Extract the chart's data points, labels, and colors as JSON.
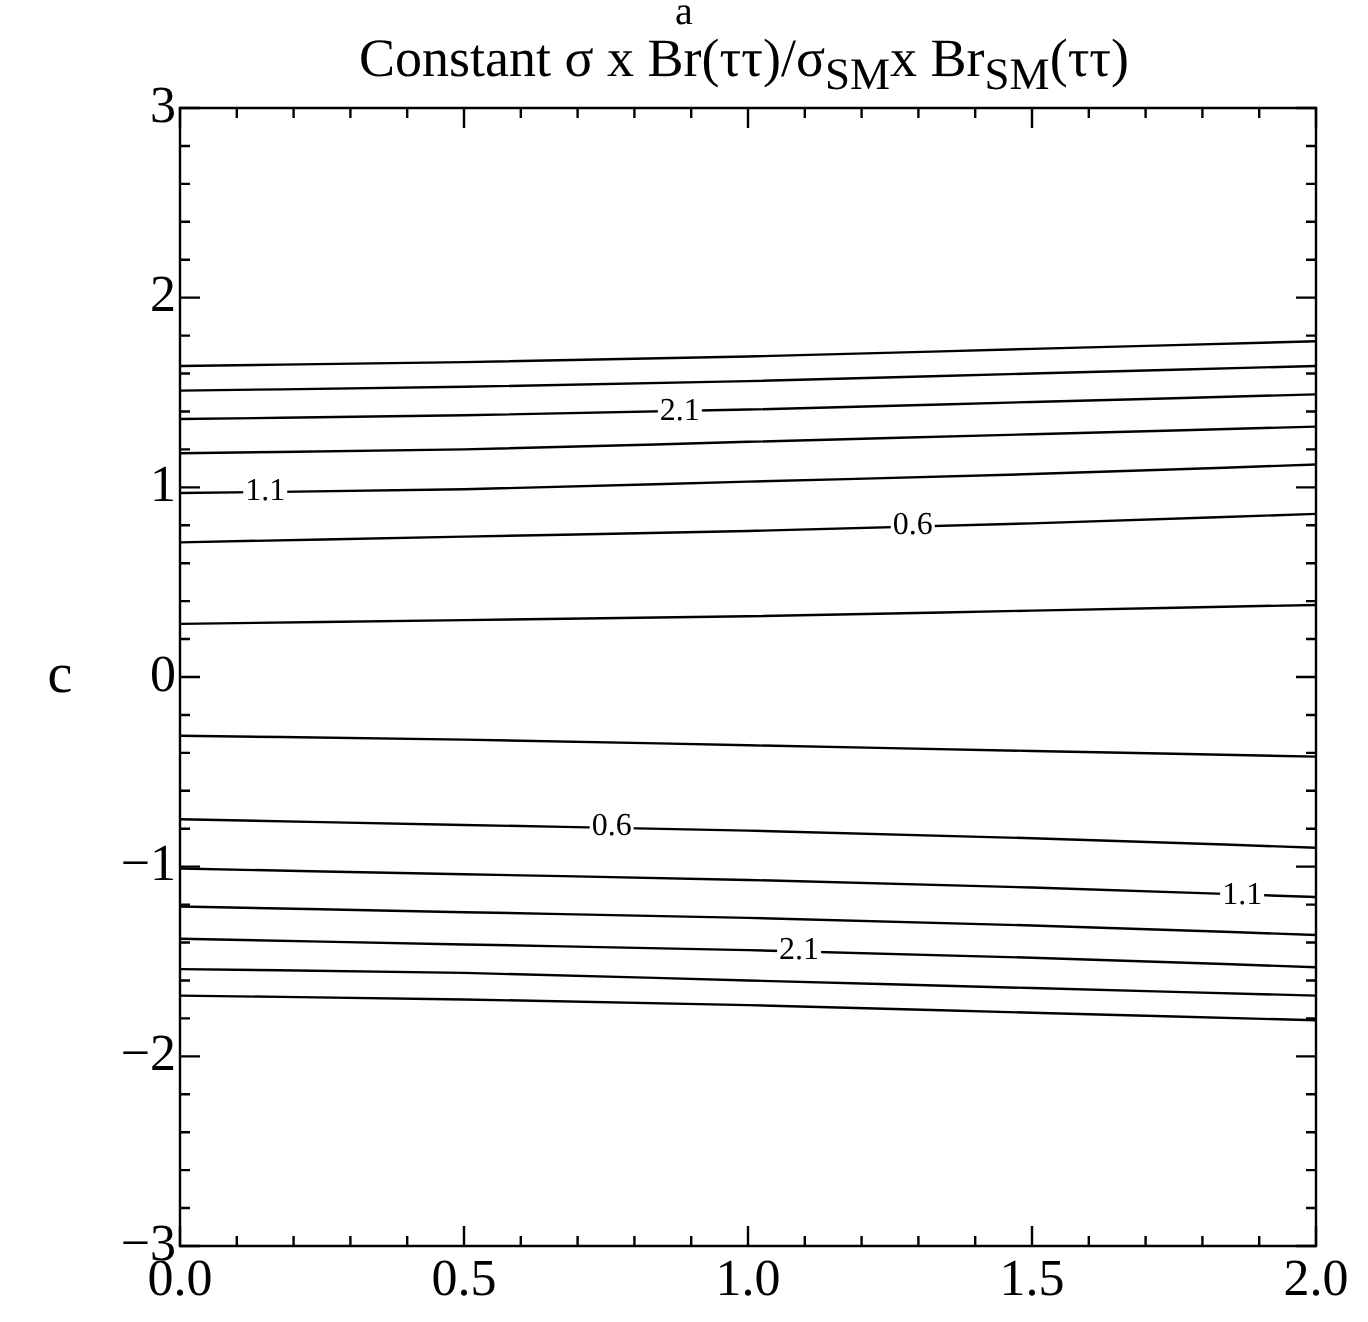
{
  "chart_data": {
    "type": "line",
    "title": "Constant σ x Br(ττ)/σ$_{SM}$x Br$_{SM}$(ττ)",
    "xlabel": "a",
    "ylabel": "c",
    "x": [
      0,
      0.5,
      1,
      1.5,
      2
    ],
    "series": [
      {
        "color": "#000000",
        "values": [
          1.64,
          1.66,
          1.69,
          1.73,
          1.77
        ]
      },
      {
        "color": "#000000",
        "values": [
          1.51,
          1.53,
          1.56,
          1.6,
          1.64
        ]
      },
      {
        "color": "#000000",
        "values": [
          1.36,
          1.38,
          1.41,
          1.45,
          1.49
        ]
      },
      {
        "color": "#000000",
        "values": [
          1.18,
          1.2,
          1.24,
          1.28,
          1.32
        ]
      },
      {
        "color": "#000000",
        "values": [
          0.97,
          0.99,
          1.03,
          1.07,
          1.12
        ]
      },
      {
        "color": "#000000",
        "values": [
          0.71,
          0.74,
          0.77,
          0.81,
          0.86
        ]
      },
      {
        "color": "#000000",
        "values": [
          0.28,
          0.3,
          0.32,
          0.35,
          0.38
        ]
      },
      {
        "color": "#000000",
        "values": [
          -0.31,
          -0.33,
          -0.36,
          -0.39,
          -0.42
        ]
      },
      {
        "color": "#000000",
        "values": [
          -0.75,
          -0.78,
          -0.81,
          -0.85,
          -0.9
        ]
      },
      {
        "color": "#000000",
        "values": [
          -1.01,
          -1.04,
          -1.07,
          -1.11,
          -1.16
        ]
      },
      {
        "color": "#000000",
        "values": [
          -1.21,
          -1.24,
          -1.27,
          -1.31,
          -1.36
        ]
      },
      {
        "color": "#000000",
        "values": [
          -1.38,
          -1.41,
          -1.44,
          -1.48,
          -1.53
        ]
      },
      {
        "color": "#000000",
        "values": [
          -1.54,
          -1.56,
          -1.6,
          -1.64,
          -1.68
        ]
      },
      {
        "color": "#000000",
        "values": [
          -1.68,
          -1.7,
          -1.73,
          -1.77,
          -1.81
        ]
      }
    ],
    "annotations": [
      {
        "text": "2.1",
        "x": 0.88,
        "y": 1.4
      },
      {
        "text": "1.1",
        "x": 0.15,
        "y": 0.98
      },
      {
        "text": "0.6",
        "x": 1.29,
        "y": 0.8
      },
      {
        "text": "0.6",
        "x": 0.76,
        "y": -0.79
      },
      {
        "text": "1.1",
        "x": 1.87,
        "y": -1.15
      },
      {
        "text": "2.1",
        "x": 1.09,
        "y": -1.44
      }
    ],
    "xlim": [
      0,
      2
    ],
    "ylim": [
      -3,
      3
    ],
    "xticks": [
      {
        "value": 0,
        "label": "0.0"
      },
      {
        "value": 0.1,
        "label": null
      },
      {
        "value": 0.2,
        "label": null
      },
      {
        "value": 0.3,
        "label": null
      },
      {
        "value": 0.4,
        "label": null
      },
      {
        "value": 0.5,
        "label": "0.5"
      },
      {
        "value": 0.6,
        "label": null
      },
      {
        "value": 0.7,
        "label": null
      },
      {
        "value": 0.8,
        "label": null
      },
      {
        "value": 0.9,
        "label": null
      },
      {
        "value": 1,
        "label": "1.0"
      },
      {
        "value": 1.1,
        "label": null
      },
      {
        "value": 1.2,
        "label": null
      },
      {
        "value": 1.3,
        "label": null
      },
      {
        "value": 1.4,
        "label": null
      },
      {
        "value": 1.5,
        "label": "1.5"
      },
      {
        "value": 1.6,
        "label": null
      },
      {
        "value": 1.7,
        "label": null
      },
      {
        "value": 1.8,
        "label": null
      },
      {
        "value": 1.9,
        "label": null
      },
      {
        "value": 2,
        "label": "2.0"
      }
    ],
    "yticks": [
      {
        "value": -3,
        "label": "−3"
      },
      {
        "value": -2.8,
        "label": null
      },
      {
        "value": -2.6,
        "label": null
      },
      {
        "value": -2.4,
        "label": null
      },
      {
        "value": -2.2,
        "label": null
      },
      {
        "value": -2,
        "label": "−2"
      },
      {
        "value": -1.8,
        "label": null
      },
      {
        "value": -1.6,
        "label": null
      },
      {
        "value": -1.4,
        "label": null
      },
      {
        "value": -1.2,
        "label": null
      },
      {
        "value": -1,
        "label": "−1"
      },
      {
        "value": -0.8,
        "label": null
      },
      {
        "value": -0.6,
        "label": null
      },
      {
        "value": -0.4,
        "label": null
      },
      {
        "value": -0.2,
        "label": null
      },
      0,
      {
        "value": 0.2,
        "label": null
      },
      {
        "value": 0.4,
        "label": null
      },
      {
        "value": 0.6,
        "label": null
      },
      {
        "value": 0.8,
        "label": null
      },
      1,
      {
        "value": 1.2,
        "label": null
      },
      {
        "value": 1.4,
        "label": null
      },
      {
        "value": 1.6,
        "label": null
      },
      {
        "value": 1.8,
        "label": null
      },
      2,
      {
        "value": 2.2,
        "label": null
      },
      {
        "value": 2.4,
        "label": null
      },
      {
        "value": 2.6,
        "label": null
      },
      {
        "value": 2.8,
        "label": null
      },
      3
    ],
    "grid": false,
    "legend": false,
    "marker": "none",
    "line_style": "solid"
  }
}
